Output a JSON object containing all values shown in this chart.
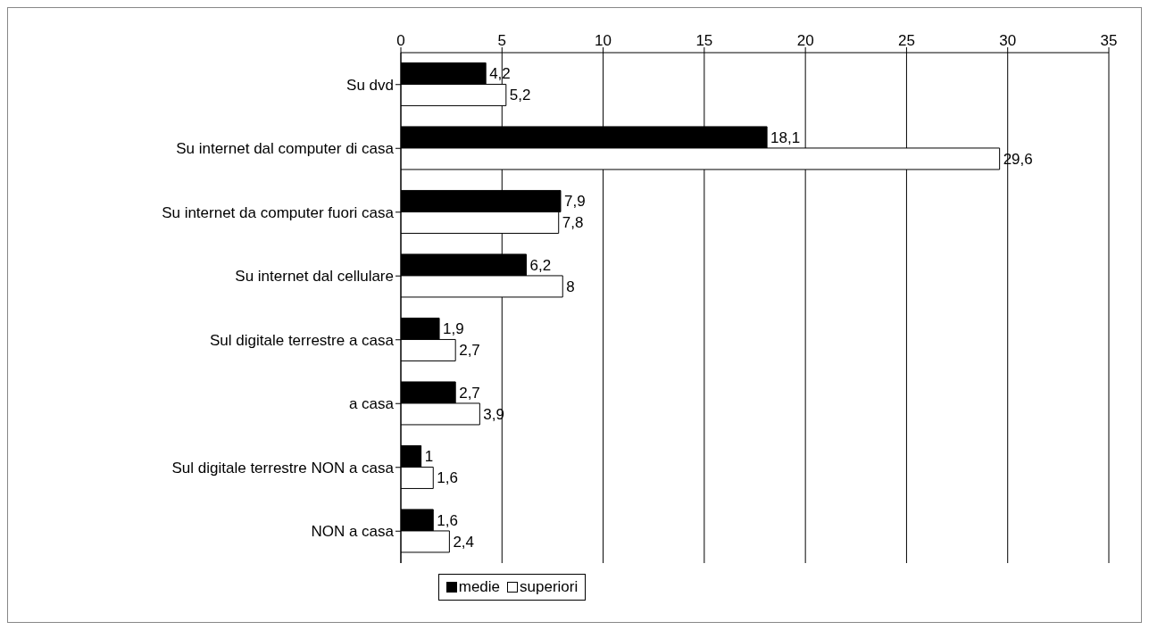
{
  "chart_data": {
    "type": "bar",
    "orientation": "horizontal",
    "categories": [
      "Su dvd",
      "Su internet dal computer di casa",
      "Su internet da computer fuori casa",
      "Su internet dal cellulare",
      "Sul digitale terrestre a casa",
      "a casa",
      "Sul digitale terrestre NON a casa",
      "NON a casa"
    ],
    "series": [
      {
        "name": "medie",
        "color": "#000000",
        "values": [
          4.2,
          18.1,
          7.9,
          6.2,
          1.9,
          2.7,
          1,
          1.6
        ],
        "value_labels": [
          "4,2",
          "18,1",
          "7,9",
          "6,2",
          "1,9",
          "2,7",
          "1",
          "1,6"
        ]
      },
      {
        "name": "superiori",
        "color": "#ffffff",
        "values": [
          5.2,
          29.6,
          7.8,
          8,
          2.7,
          3.9,
          1.6,
          2.4
        ],
        "value_labels": [
          "5,2",
          "29,6",
          "7,8",
          "8",
          "2,7",
          "3,9",
          "1,6",
          "2,4"
        ]
      }
    ],
    "xlim": [
      0,
      35
    ],
    "xticks": [
      0,
      5,
      10,
      15,
      20,
      25,
      30,
      35
    ],
    "grid": "x",
    "legend": "bottom"
  }
}
